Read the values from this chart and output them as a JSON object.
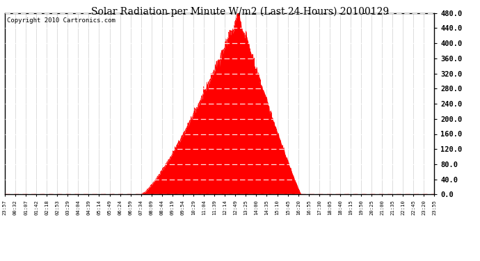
{
  "title": "Solar Radiation per Minute W/m2 (Last 24 Hours) 20100129",
  "copyright": "Copyright 2010 Cartronics.com",
  "bg_color": "#ffffff",
  "plot_bg_color": "#ffffff",
  "fill_color": "#ff0000",
  "line_color": "#ff0000",
  "grid_color_h": "#aaaaaa",
  "grid_color_v": "#aaaaaa",
  "dashed_line_color": "#ff0000",
  "ylim": [
    0.0,
    480.0
  ],
  "yticks": [
    0.0,
    40.0,
    80.0,
    120.0,
    160.0,
    200.0,
    240.0,
    280.0,
    320.0,
    360.0,
    400.0,
    440.0,
    480.0
  ],
  "x_tick_labels": [
    "23:57",
    "00:32",
    "01:07",
    "01:42",
    "02:18",
    "02:53",
    "03:29",
    "04:04",
    "04:39",
    "05:14",
    "05:49",
    "06:24",
    "06:59",
    "07:34",
    "08:09",
    "08:44",
    "09:19",
    "09:54",
    "10:29",
    "11:04",
    "11:39",
    "12:14",
    "12:49",
    "13:25",
    "14:00",
    "14:35",
    "15:10",
    "15:45",
    "16:20",
    "16:55",
    "17:30",
    "18:05",
    "18:40",
    "19:15",
    "19:50",
    "20:25",
    "21:00",
    "21:35",
    "22:10",
    "22:45",
    "23:20",
    "23:55"
  ],
  "num_points": 1440,
  "sunrise_time": "07:34",
  "sunset_time": "16:30",
  "peak_time": "13:00",
  "peak_value": 475
}
